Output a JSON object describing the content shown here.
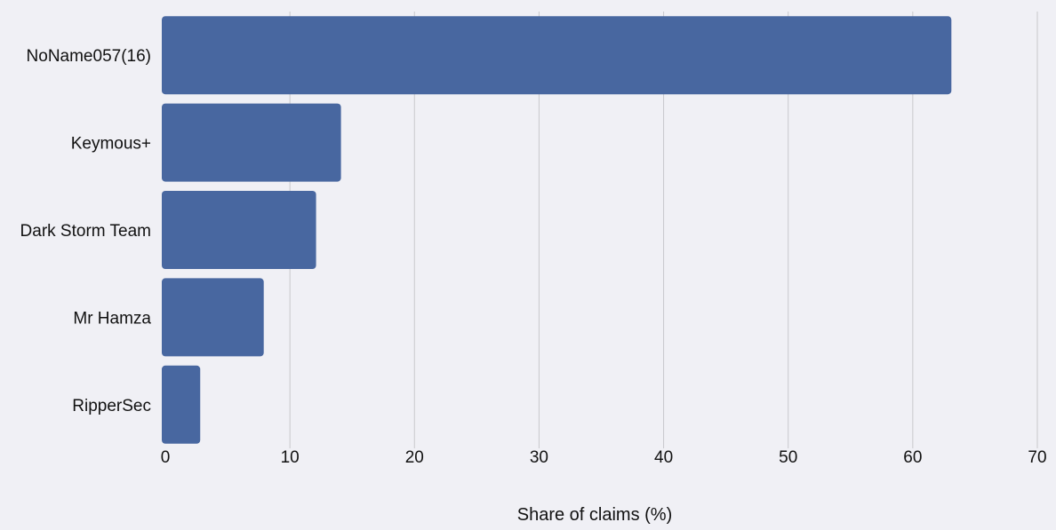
{
  "chart_data": {
    "type": "bar",
    "orientation": "horizontal",
    "categories": [
      "NoName057(16)",
      "Keymous+",
      "Dark Storm Team",
      "Mr Hamza",
      "RipperSec"
    ],
    "values": [
      63.1,
      14.1,
      12.1,
      7.9,
      2.8
    ],
    "xlabel": "Share of claims (%)",
    "ylabel": "",
    "xlim": [
      0,
      70
    ],
    "x_ticks": [
      0,
      10,
      20,
      30,
      40,
      50,
      60,
      70
    ],
    "grid": "vertical",
    "bar_color": "#4867a0",
    "grid_color": "#c8c8cc",
    "background": "#f0f0f5"
  }
}
